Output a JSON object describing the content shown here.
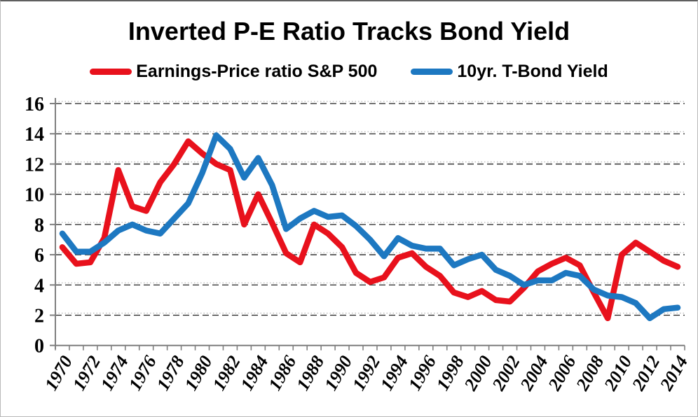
{
  "chart_data": {
    "type": "line",
    "title": "Inverted P-E Ratio Tracks Bond Yield",
    "x": [
      1970,
      1971,
      1972,
      1973,
      1974,
      1975,
      1976,
      1977,
      1978,
      1979,
      1980,
      1981,
      1982,
      1983,
      1984,
      1985,
      1986,
      1987,
      1988,
      1989,
      1990,
      1991,
      1992,
      1993,
      1994,
      1995,
      1996,
      1997,
      1998,
      1999,
      2000,
      2001,
      2002,
      2003,
      2004,
      2005,
      2006,
      2007,
      2008,
      2009,
      2010,
      2011,
      2012,
      2013,
      2014
    ],
    "series": [
      {
        "name": "Earnings-Price ratio S&P 500",
        "color": "#e8111c",
        "values": [
          6.5,
          5.4,
          5.5,
          7.1,
          11.6,
          9.2,
          8.9,
          10.8,
          12.0,
          13.5,
          12.7,
          12.0,
          11.6,
          8.0,
          10.0,
          8.1,
          6.1,
          5.5,
          8.0,
          7.4,
          6.5,
          4.8,
          4.2,
          4.5,
          5.8,
          6.1,
          5.2,
          4.6,
          3.5,
          3.2,
          3.6,
          3.0,
          2.9,
          3.8,
          4.9,
          5.4,
          5.8,
          5.3,
          3.5,
          1.8,
          6.0,
          6.8,
          6.2,
          5.6,
          5.2
        ]
      },
      {
        "name": "10yr. T-Bond Yield",
        "color": "#1d78c1",
        "values": [
          7.4,
          6.2,
          6.2,
          6.8,
          7.6,
          8.0,
          7.6,
          7.4,
          8.4,
          9.4,
          11.4,
          13.9,
          13.0,
          11.1,
          12.4,
          10.6,
          7.7,
          8.4,
          8.9,
          8.5,
          8.6,
          7.9,
          7.0,
          5.9,
          7.1,
          6.6,
          6.4,
          6.4,
          5.3,
          5.7,
          6.0,
          5.0,
          4.6,
          4.0,
          4.3,
          4.3,
          4.8,
          4.6,
          3.7,
          3.3,
          3.2,
          2.8,
          1.8,
          2.4,
          2.5
        ]
      }
    ],
    "ylim": [
      0,
      16
    ],
    "yticks": [
      0,
      2,
      4,
      6,
      8,
      10,
      12,
      14,
      16
    ],
    "xtick_labels": [
      "1970",
      "1972",
      "1974",
      "1976",
      "1978",
      "1980",
      "1982",
      "1984",
      "1986",
      "1988",
      "1990",
      "1992",
      "1994",
      "1996",
      "1998",
      "2000",
      "2002",
      "2004",
      "2006",
      "2008",
      "2010",
      "2012",
      "2014"
    ],
    "grid": {
      "horizontal": true,
      "style": "dashed",
      "color": "#222222",
      "faint_dot_color": "#a6a6a6"
    },
    "axis_color": "#7f7f7f",
    "legend_position": "top"
  }
}
